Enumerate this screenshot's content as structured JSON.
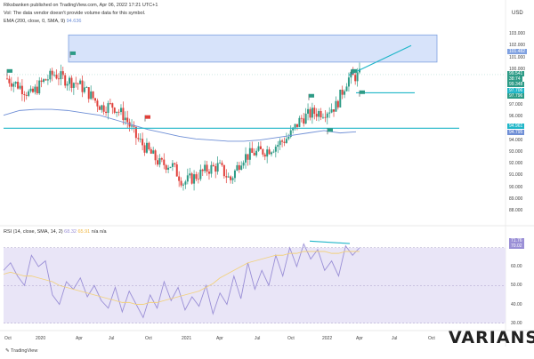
{
  "header": {
    "publisher": "Riksbanken published on TradingView.com, Apr 06, 2022 17:21 UTC+1",
    "notice": "Vol: The data vendor doesn't provide volume data for this symbol.",
    "ema_label": "EMA (200, close, 0, SMA, 9)",
    "ema_value": "94.636",
    "currency": "USD"
  },
  "rsi_header": {
    "label": "RSI (14, close, SMA, 14, 2)",
    "v1": "68.32",
    "v2": "65.91",
    "v3": "n/a n/a"
  },
  "price_axis": [
    "103.000",
    "102.000",
    "101.000",
    "100.000",
    "99.000",
    "98.000",
    "97.000",
    "96.000",
    "95.000",
    "94.000",
    "93.000",
    "92.000",
    "91.000",
    "90.000",
    "89.000",
    "88.000"
  ],
  "price_tags": {
    "box_top": "101.482",
    "last": "99.541",
    "countdown": "38:74",
    "mid": "99.348",
    "low": "97.706",
    "low2": "97.796",
    "sup1": "94.961",
    "sup2": "94.795"
  },
  "rsi_axis": [
    "70.00",
    "60.00",
    "50.00",
    "40.00",
    "30.00"
  ],
  "rsi_tags": {
    "a": "71.76",
    "b": "70.02"
  },
  "time_axis": [
    "Oct",
    "2020",
    "Apr",
    "Jul",
    "Oct",
    "2021",
    "Apr",
    "Jul",
    "Oct",
    "2022",
    "Apr",
    "Jul",
    "Oct"
  ],
  "footer": {
    "brand": "VARIANSE",
    "tv": "TradingView"
  },
  "colors": {
    "up": "#2d9b86",
    "down": "#e0403b",
    "ema": "#6f8fd6",
    "trend": "#1fb6c8",
    "zone": "#b6ccf5",
    "rsi": "#9a8fd6",
    "rsi_ma": "#f2d17c",
    "rsi_band": "#e9e5f7"
  },
  "chart_data": {
    "type": "candlestick",
    "title": "",
    "ylim": [
      87.8,
      103.6
    ],
    "x": [
      "2019-10",
      "2019-11",
      "2019-12",
      "2020-01",
      "2020-02",
      "2020-03",
      "2020-04",
      "2020-05",
      "2020-06",
      "2020-07",
      "2020-08",
      "2020-09",
      "2020-10",
      "2020-11",
      "2020-12",
      "2021-01",
      "2021-02",
      "2021-03",
      "2021-04",
      "2021-05",
      "2021-06",
      "2021-07",
      "2021-08",
      "2021-09",
      "2021-10",
      "2021-11",
      "2021-12",
      "2022-01",
      "2022-02",
      "2022-03",
      "2022-04"
    ],
    "close": [
      99.2,
      98.6,
      97.8,
      98.9,
      99.6,
      99.1,
      98.8,
      97.9,
      96.8,
      96.9,
      96.0,
      94.2,
      93.1,
      92.0,
      91.9,
      90.4,
      90.9,
      91.5,
      91.8,
      90.6,
      92.5,
      92.9,
      93.1,
      93.6,
      94.3,
      95.8,
      96.3,
      96.4,
      96.9,
      99.2,
      99.5
    ],
    "zone": {
      "from": 100.6,
      "to": 102.9
    },
    "support_levels": [
      98.0,
      95.0
    ],
    "ema_200": [
      96.1,
      96.5,
      96.6,
      96.6,
      96.5,
      96.3,
      96.1,
      95.7,
      95.3,
      94.9,
      94.6,
      94.3,
      94.1,
      94.0,
      93.9,
      93.9,
      94.0,
      94.2,
      94.4,
      94.6,
      94.8,
      94.6,
      94.7
    ],
    "rsi": {
      "label": "RSI (14, close, SMA, 14, 2)",
      "ylim": [
        28,
        76
      ],
      "values": [
        58,
        62,
        55,
        50,
        66,
        60,
        63,
        45,
        40,
        52,
        48,
        54,
        44,
        50,
        42,
        38,
        49,
        36,
        47,
        40,
        33,
        45,
        38,
        52,
        42,
        49,
        37,
        44,
        39,
        50,
        35,
        46,
        40,
        55,
        43,
        62,
        48,
        58,
        50,
        66,
        55,
        70,
        60,
        72,
        64,
        69,
        58,
        63,
        55,
        71,
        66,
        70
      ],
      "ma": [
        56,
        57,
        56,
        55,
        55,
        54,
        53,
        52,
        50,
        49,
        48,
        47,
        46,
        45,
        44,
        43,
        42,
        41,
        41,
        40,
        40,
        41,
        41,
        42,
        43,
        44,
        45,
        46,
        47,
        49,
        51,
        54,
        56,
        58,
        60,
        62,
        63,
        64,
        65,
        66,
        66,
        67,
        67,
        68,
        68,
        68,
        68,
        67,
        67,
        68,
        68,
        68
      ],
      "bands": [
        70,
        50,
        30
      ]
    }
  }
}
